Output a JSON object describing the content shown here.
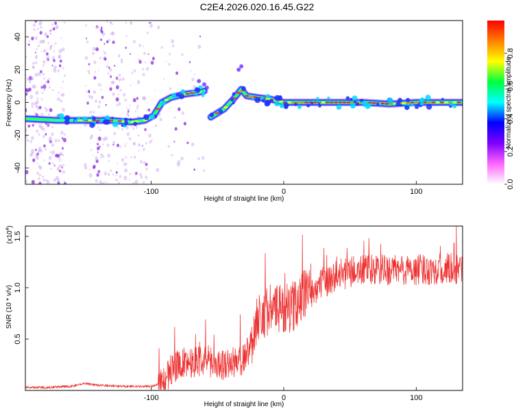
{
  "title": "C2E4.2026.020.16.45.G22",
  "chart_data": [
    {
      "type": "heatmap",
      "xlabel": "Height of straight line (km)",
      "ylabel": "Frequency (Hz)",
      "xlim": [
        -195,
        135
      ],
      "ylim": [
        -50,
        50
      ],
      "xticks": [
        -100,
        0,
        100
      ],
      "yticks": [
        -40,
        -20,
        0,
        20,
        40
      ],
      "colorbar": {
        "label": "Normalized spectral amplitude",
        "range": [
          0,
          1
        ],
        "ticks": [
          "0.0",
          "0.2",
          "0.4",
          "0.6",
          "0.8"
        ],
        "tick_values": [
          0.0,
          0.2,
          0.4,
          0.6,
          0.8
        ],
        "colors": [
          "#ffffff",
          "#ff66ff",
          "#8000ff",
          "#0000ff",
          "#00ffff",
          "#00ff40",
          "#ffff00",
          "#ff8000",
          "#ff0000"
        ]
      },
      "main_trace": [
        [
          -195,
          -10
        ],
        [
          -170,
          -11
        ],
        [
          -150,
          -11
        ],
        [
          -130,
          -11
        ],
        [
          -115,
          -12
        ],
        [
          -105,
          -11
        ],
        [
          -98,
          -8
        ],
        [
          -92,
          0
        ],
        [
          -85,
          3
        ],
        [
          -75,
          5
        ],
        [
          -65,
          6
        ],
        [
          -60,
          7
        ],
        [
          -55,
          -9
        ],
        [
          -45,
          -4
        ],
        [
          -38,
          2
        ],
        [
          -32,
          8
        ],
        [
          -28,
          4
        ],
        [
          -20,
          3
        ],
        [
          -10,
          2
        ],
        [
          0,
          0
        ],
        [
          20,
          0
        ],
        [
          40,
          0
        ],
        [
          60,
          0
        ],
        [
          80,
          -1
        ],
        [
          100,
          0
        ],
        [
          120,
          0
        ],
        [
          135,
          0
        ]
      ]
    },
    {
      "type": "line",
      "xlabel": "Height of straight line (km)",
      "ylabel": "SNR (10 * v/v)",
      "multiplier_label": "(x10",
      "multiplier_exponent": "4",
      "xlim": [
        -195,
        135
      ],
      "ylim": [
        0,
        1.6
      ],
      "xticks": [
        -100,
        0,
        100
      ],
      "yticks": [
        0.5,
        1.0,
        1.5
      ],
      "ytick_labels": [
        "0.5",
        "1.0",
        "1.5"
      ],
      "color": "#ee3333",
      "series_envelope": [
        [
          -195,
          0.03
        ],
        [
          -180,
          0.03
        ],
        [
          -160,
          0.04
        ],
        [
          -150,
          0.07
        ],
        [
          -140,
          0.05
        ],
        [
          -120,
          0.04
        ],
        [
          -100,
          0.04
        ],
        [
          -90,
          0.08
        ],
        [
          -85,
          0.2
        ],
        [
          -80,
          0.25
        ],
        [
          -70,
          0.28
        ],
        [
          -60,
          0.3
        ],
        [
          -50,
          0.25
        ],
        [
          -40,
          0.26
        ],
        [
          -30,
          0.3
        ],
        [
          -25,
          0.45
        ],
        [
          -20,
          0.7
        ],
        [
          -15,
          0.75
        ],
        [
          -10,
          0.8
        ],
        [
          -5,
          0.78
        ],
        [
          0,
          0.8
        ],
        [
          5,
          0.8
        ],
        [
          10,
          0.85
        ],
        [
          15,
          0.95
        ],
        [
          20,
          0.95
        ],
        [
          25,
          1.0
        ],
        [
          30,
          1.05
        ],
        [
          40,
          1.12
        ],
        [
          50,
          1.15
        ],
        [
          60,
          1.17
        ],
        [
          70,
          1.17
        ],
        [
          80,
          1.17
        ],
        [
          90,
          1.17
        ],
        [
          100,
          1.17
        ],
        [
          110,
          1.18
        ],
        [
          120,
          1.18
        ],
        [
          135,
          1.18
        ]
      ]
    }
  ]
}
